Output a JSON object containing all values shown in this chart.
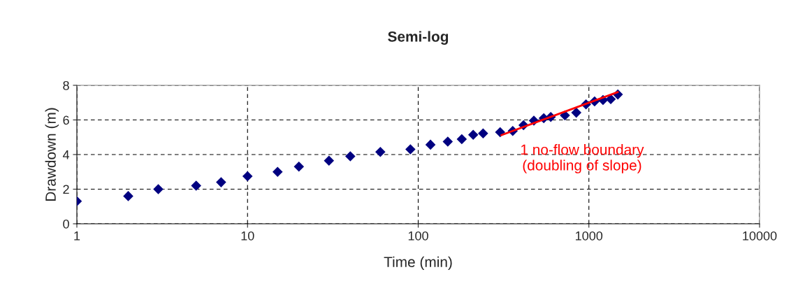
{
  "chart_data": {
    "type": "scatter",
    "title": "Semi-log",
    "xlabel": "Time (min)",
    "ylabel": "Drawdown (m)",
    "log": "x",
    "xlim": [
      1,
      10000
    ],
    "xticks": [
      1,
      10,
      100,
      1000,
      10000
    ],
    "ylim": [
      0,
      8
    ],
    "yticks": [
      0,
      2,
      4,
      6,
      8
    ],
    "grid": true,
    "legend": false,
    "annotations": [
      "1 no-flow boundary\n(doubling of slope)"
    ],
    "series": [
      {
        "color": "#000080",
        "marker": "diamond",
        "x": [
          1,
          2,
          3,
          5,
          7,
          10,
          15,
          20,
          30,
          40,
          60,
          90,
          118,
          149,
          180,
          210,
          240,
          302,
          358,
          414,
          476,
          544,
          598,
          724,
          844,
          962,
          1080,
          1210,
          1343,
          1478
        ],
        "values": [
          1.3,
          1.6,
          2.0,
          2.2,
          2.4,
          2.75,
          3.0,
          3.3,
          3.65,
          3.9,
          4.15,
          4.3,
          4.57,
          4.75,
          4.89,
          5.14,
          5.22,
          5.29,
          5.36,
          5.7,
          5.96,
          6.1,
          6.17,
          6.26,
          6.42,
          6.9,
          7.07,
          7.15,
          7.2,
          7.47
        ]
      },
      {
        "type": "line",
        "color": "#ff0000",
        "line_style": "solid",
        "x": [
          307,
          1478
        ],
        "values": [
          5.12,
          7.61
        ]
      }
    ]
  }
}
